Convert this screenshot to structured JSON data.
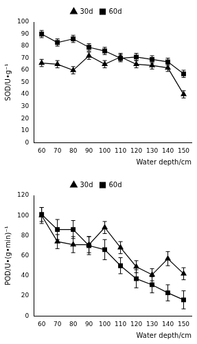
{
  "chart_data": [
    {
      "type": "line",
      "y_label": "SOD/U•g⁻¹",
      "x_label": "Water depth/cm",
      "categories": [
        60,
        70,
        80,
        90,
        100,
        110,
        120,
        130,
        140,
        150
      ],
      "series": [
        {
          "name": "30d",
          "color": "#000000",
          "marker": "triangle",
          "values": [
            66,
            65,
            60,
            72,
            65,
            71,
            65,
            64,
            62,
            40
          ],
          "errors": [
            3,
            3,
            3,
            3,
            3,
            3,
            3,
            3,
            3,
            3
          ]
        },
        {
          "name": "60d",
          "color": "#000000",
          "marker": "square",
          "values": [
            90,
            83,
            86,
            79,
            76,
            70,
            71,
            69,
            67,
            57
          ],
          "errors": [
            3,
            3,
            3,
            3,
            3,
            3,
            3,
            3,
            3,
            3
          ]
        }
      ],
      "ylim": [
        0,
        100
      ],
      "yticks": [
        0,
        10,
        20,
        30,
        40,
        50,
        60,
        70,
        80,
        90,
        100
      ],
      "grid": false,
      "legend": "top"
    },
    {
      "type": "line",
      "y_label": "POD/U•(g•min)⁻¹",
      "x_label": "Water depth/cm",
      "categories": [
        60,
        70,
        80,
        90,
        100,
        110,
        120,
        130,
        140,
        150
      ],
      "series": [
        {
          "name": "30d",
          "color": "#000000",
          "marker": "triangle",
          "values": [
            100,
            74,
            71,
            71,
            88,
            68,
            49,
            41,
            57,
            42
          ],
          "errors": [
            8,
            7,
            8,
            8,
            6,
            6,
            6,
            6,
            7,
            6
          ]
        },
        {
          "name": "60d",
          "color": "#000000",
          "marker": "square",
          "values": [
            101,
            86,
            86,
            70,
            66,
            50,
            37,
            31,
            23,
            16
          ],
          "errors": [
            7,
            10,
            9,
            9,
            10,
            8,
            9,
            8,
            8,
            9
          ]
        }
      ],
      "ylim": [
        0,
        120
      ],
      "yticks": [
        0,
        20,
        40,
        60,
        80,
        100,
        120
      ],
      "grid": false,
      "legend": "top"
    }
  ]
}
